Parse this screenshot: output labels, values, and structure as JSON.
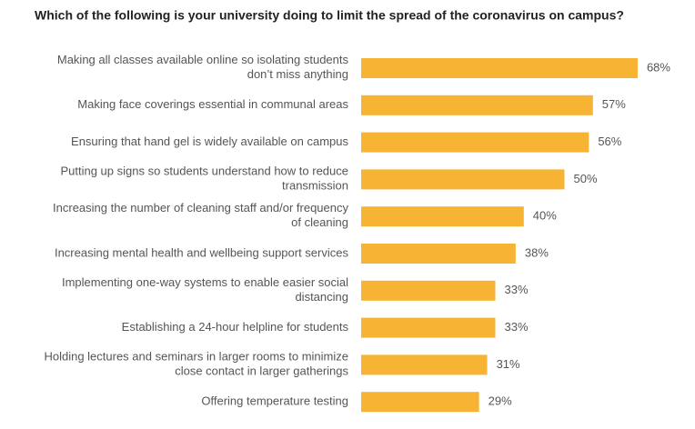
{
  "chart_data": {
    "type": "barh",
    "title": "Which of the following is your university doing to limit the spread of the coronavirus on campus?",
    "categories": [
      "Making all classes available online so isolating students\ndon’t miss anything",
      "Making face coverings essential in communal areas",
      "Ensuring that hand gel is widely available on campus",
      "Putting up signs so students understand how to reduce\ntransmission",
      "Increasing the number of cleaning staff and/or frequency\nof cleaning",
      "Increasing mental health and wellbeing support services",
      "Implementing one-way systems to enable easier social\ndistancing",
      "Establishing a 24-hour helpline for students",
      "Holding lectures and seminars in larger rooms to minimize\nclose contact in larger gatherings",
      "Offering temperature testing"
    ],
    "values": [
      68,
      57,
      56,
      50,
      40,
      38,
      33,
      33,
      31,
      29
    ],
    "value_labels": [
      "68%",
      "57%",
      "56%",
      "50%",
      "40%",
      "38%",
      "33%",
      "33%",
      "31%",
      "29%"
    ],
    "color": "#f7b334"
  }
}
